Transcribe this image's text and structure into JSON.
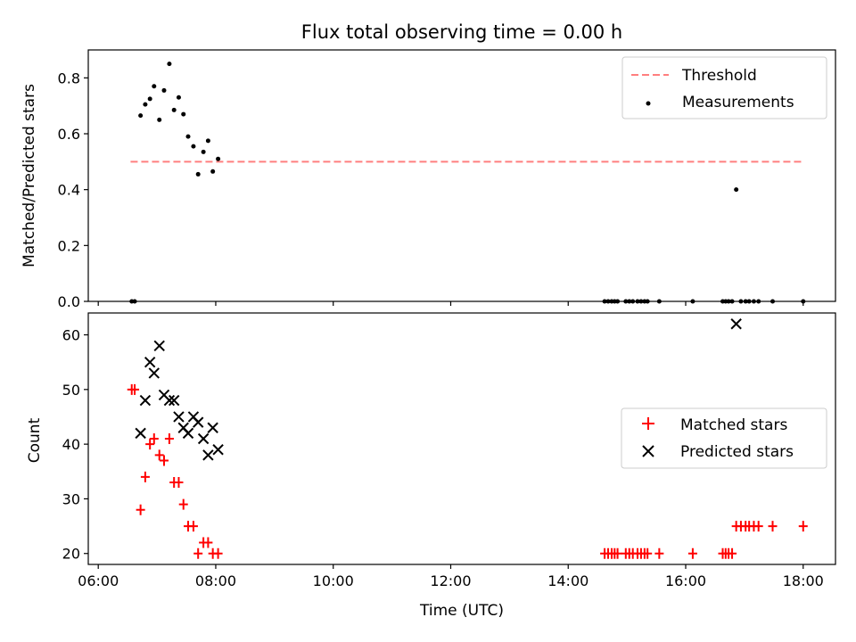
{
  "chart_data": {
    "title": "Flux total observing time = 0.00 h",
    "xlabel": "Time (UTC)",
    "x_tick_labels": [
      "06:00",
      "08:00",
      "10:00",
      "12:00",
      "14:00",
      "16:00",
      "18:00"
    ],
    "xlim_hours": [
      5.83,
      18.55
    ],
    "panels": [
      {
        "type": "scatter",
        "ylabel": "Matched/Predicted stars",
        "ylim": [
          0,
          0.9
        ],
        "y_ticks": [
          0.0,
          0.2,
          0.4,
          0.6,
          0.8
        ],
        "y_tick_labels": [
          "0.0",
          "0.2",
          "0.4",
          "0.6",
          "0.8"
        ],
        "legend_position": "upper right",
        "series": [
          {
            "name": "Threshold",
            "style": "dashed-line",
            "color": "#ff7f7f",
            "x_hours": [
              6.55,
              18.0
            ],
            "y": [
              0.5,
              0.5
            ]
          },
          {
            "name": "Measurements",
            "style": "dot",
            "color": "#000000",
            "x_hours": [
              6.57,
              6.62,
              6.72,
              6.8,
              6.88,
              6.95,
              7.04,
              7.12,
              7.21,
              7.29,
              7.37,
              7.45,
              7.53,
              7.62,
              7.7,
              7.79,
              7.87,
              7.95,
              8.04,
              14.62,
              14.68,
              14.74,
              14.79,
              14.84,
              14.98,
              15.04,
              15.1,
              15.18,
              15.24,
              15.3,
              15.35,
              15.55,
              16.12,
              16.63,
              16.68,
              16.73,
              16.79,
              16.86,
              16.94,
              17.02,
              17.08,
              17.16,
              17.24,
              17.48,
              18.0
            ],
            "y": [
              0.0,
              0.0,
              0.665,
              0.705,
              0.725,
              0.77,
              0.65,
              0.755,
              0.85,
              0.685,
              0.73,
              0.67,
              0.59,
              0.555,
              0.455,
              0.535,
              0.575,
              0.465,
              0.51,
              0.0,
              0.0,
              0.0,
              0.0,
              0.0,
              0.0,
              0.0,
              0.0,
              0.0,
              0.0,
              0.0,
              0.0,
              0.0,
              0.0,
              0.0,
              0.0,
              0.0,
              0.0,
              0.4,
              0.0,
              0.0,
              0.0,
              0.0,
              0.0,
              0.0,
              0.0
            ]
          }
        ]
      },
      {
        "type": "scatter",
        "ylabel": "Count",
        "ylim": [
          18,
          64
        ],
        "y_ticks": [
          20,
          30,
          40,
          50,
          60
        ],
        "y_tick_labels": [
          "20",
          "30",
          "40",
          "50",
          "60"
        ],
        "legend_position": "center right",
        "series": [
          {
            "name": "Matched stars",
            "style": "plus",
            "color": "#ff0000",
            "x_hours": [
              6.57,
              6.62,
              6.72,
              6.8,
              6.88,
              6.95,
              7.04,
              7.12,
              7.21,
              7.29,
              7.37,
              7.45,
              7.53,
              7.62,
              7.7,
              7.79,
              7.87,
              7.95,
              8.04,
              14.62,
              14.68,
              14.74,
              14.79,
              14.84,
              14.98,
              15.04,
              15.1,
              15.18,
              15.24,
              15.3,
              15.35,
              15.55,
              16.12,
              16.63,
              16.68,
              16.73,
              16.79,
              16.86,
              16.94,
              17.02,
              17.08,
              17.16,
              17.24,
              17.48,
              18.0
            ],
            "y": [
              50,
              50,
              28,
              34,
              40,
              41,
              38,
              37,
              41,
              33,
              33,
              29,
              25,
              25,
              20,
              22,
              22,
              20,
              20,
              20,
              20,
              20,
              20,
              20,
              20,
              20,
              20,
              20,
              20,
              20,
              20,
              20,
              20,
              20,
              20,
              20,
              20,
              25,
              25,
              25,
              25,
              25,
              25,
              25,
              25
            ]
          },
          {
            "name": "Predicted stars",
            "style": "x",
            "color": "#000000",
            "x_hours": [
              6.72,
              6.8,
              6.88,
              6.95,
              7.04,
              7.12,
              7.21,
              7.29,
              7.37,
              7.45,
              7.53,
              7.62,
              7.7,
              7.79,
              7.87,
              7.95,
              8.04,
              16.86
            ],
            "y": [
              42,
              48,
              55,
              53,
              58,
              49,
              48,
              48,
              45,
              43,
              42,
              45,
              44,
              41,
              38,
              43,
              39,
              62
            ]
          }
        ]
      }
    ]
  }
}
